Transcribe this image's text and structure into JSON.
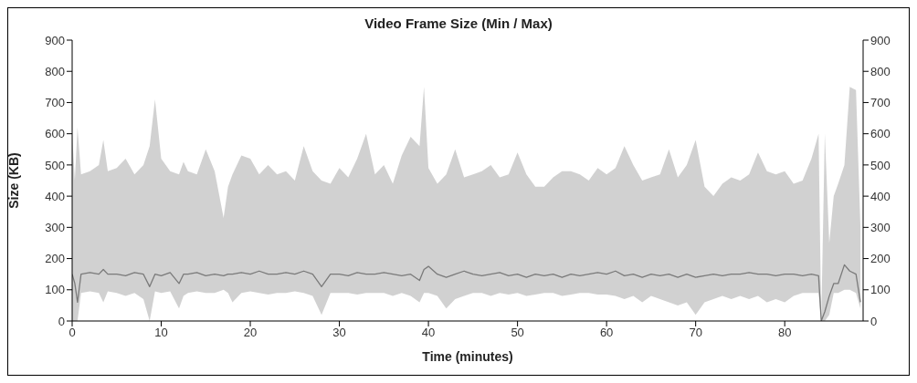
{
  "chart_data": {
    "type": "line",
    "title": "Video Frame Size (Min / Max)",
    "xlabel": "Time (minutes)",
    "ylabel": "Size (KB)",
    "x": [
      0,
      0.3,
      0.6,
      1,
      2,
      3,
      3.5,
      4,
      5,
      6,
      7,
      8,
      8.7,
      9.3,
      10,
      11,
      12,
      12.5,
      13,
      14,
      15,
      16,
      17,
      17.5,
      18,
      19,
      20,
      21,
      22,
      23,
      24,
      25,
      26,
      27,
      28,
      29,
      30,
      31,
      32,
      33,
      34,
      35,
      36,
      37,
      38,
      39,
      39.5,
      40,
      41,
      42,
      43,
      44,
      45,
      46,
      47,
      48,
      49,
      50,
      51,
      52,
      53,
      54,
      55,
      56,
      57,
      58,
      59,
      60,
      61,
      62,
      63,
      64,
      65,
      66,
      67,
      68,
      69,
      70,
      71,
      72,
      73,
      74,
      75,
      76,
      77,
      78,
      79,
      80,
      81,
      82,
      83,
      83.8,
      84.1,
      84.5,
      85,
      85.5,
      86,
      86.7,
      87.3,
      88,
      88.5
    ],
    "series": [
      {
        "color": "#7a7a7a",
        "values": [
          150,
          120,
          60,
          150,
          155,
          150,
          165,
          150,
          150,
          145,
          155,
          150,
          110,
          150,
          145,
          155,
          120,
          150,
          150,
          155,
          145,
          150,
          145,
          150,
          150,
          155,
          150,
          160,
          150,
          150,
          155,
          150,
          160,
          150,
          110,
          150,
          150,
          145,
          155,
          150,
          150,
          155,
          150,
          145,
          150,
          130,
          165,
          175,
          150,
          140,
          150,
          160,
          150,
          145,
          150,
          155,
          145,
          150,
          140,
          150,
          145,
          150,
          140,
          150,
          145,
          150,
          155,
          150,
          160,
          145,
          150,
          140,
          150,
          145,
          150,
          140,
          150,
          140,
          145,
          150,
          145,
          150,
          150,
          155,
          150,
          150,
          145,
          150,
          150,
          145,
          150,
          145,
          0,
          30,
          80,
          120,
          120,
          180,
          160,
          150,
          60
        ],
        "lower": [
          0,
          0,
          0,
          90,
          95,
          90,
          60,
          95,
          90,
          80,
          90,
          70,
          0,
          95,
          90,
          95,
          40,
          80,
          90,
          95,
          90,
          90,
          100,
          90,
          60,
          90,
          95,
          90,
          85,
          90,
          90,
          95,
          90,
          80,
          20,
          90,
          90,
          90,
          85,
          90,
          90,
          90,
          80,
          90,
          80,
          60,
          90,
          90,
          80,
          40,
          70,
          80,
          90,
          90,
          80,
          90,
          85,
          90,
          80,
          85,
          90,
          90,
          80,
          85,
          90,
          90,
          85,
          85,
          80,
          70,
          80,
          60,
          80,
          70,
          60,
          50,
          60,
          20,
          60,
          70,
          80,
          70,
          80,
          70,
          80,
          60,
          70,
          60,
          80,
          90,
          90,
          90,
          0,
          0,
          20,
          90,
          90,
          100,
          100,
          90,
          40
        ],
        "upper": [
          600,
          450,
          620,
          470,
          480,
          500,
          580,
          480,
          490,
          520,
          470,
          500,
          560,
          710,
          520,
          480,
          470,
          510,
          480,
          470,
          550,
          480,
          330,
          430,
          470,
          530,
          520,
          470,
          500,
          470,
          480,
          450,
          560,
          480,
          450,
          440,
          490,
          460,
          520,
          600,
          470,
          500,
          440,
          530,
          590,
          560,
          750,
          490,
          440,
          470,
          550,
          460,
          470,
          480,
          500,
          460,
          470,
          540,
          470,
          430,
          430,
          460,
          480,
          480,
          470,
          450,
          490,
          470,
          490,
          560,
          500,
          450,
          460,
          470,
          550,
          460,
          500,
          580,
          430,
          400,
          440,
          460,
          450,
          470,
          540,
          480,
          470,
          480,
          440,
          450,
          520,
          600,
          0,
          600,
          250,
          400,
          440,
          500,
          750,
          740,
          300
        ]
      }
    ],
    "xlim": [
      0,
      88.8
    ],
    "xticks": [
      0,
      10,
      20,
      30,
      40,
      50,
      60,
      70,
      80
    ],
    "ylim": [
      0,
      900
    ],
    "yticks": [
      0,
      100,
      200,
      300,
      400,
      500,
      600,
      700,
      800,
      900
    ],
    "y2lim": [
      0,
      900
    ],
    "y2ticks": [
      0,
      100,
      200,
      300,
      400,
      500,
      600,
      700,
      800,
      900
    ],
    "grid": false,
    "legend": false,
    "marker": "none",
    "line_style": "solid"
  }
}
